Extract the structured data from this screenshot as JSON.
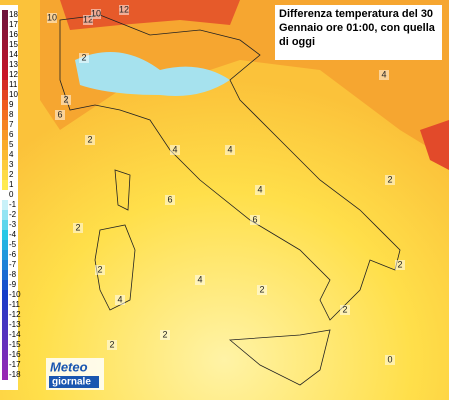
{
  "title": "Differenza temperatura del 30 Gennaio ore 01:00, con quella di oggi",
  "legend": {
    "values": [
      18,
      17,
      16,
      15,
      14,
      13,
      12,
      11,
      10,
      9,
      8,
      7,
      6,
      5,
      4,
      3,
      2,
      1,
      0,
      -1,
      -2,
      -3,
      -4,
      -5,
      -6,
      -7,
      -8,
      -9,
      -10,
      -11,
      -12,
      -13,
      -14,
      -15,
      -16,
      -17,
      -18
    ]
  },
  "logo": {
    "top": "Meteo",
    "bottom": "giornale"
  },
  "contour_labels": [
    10,
    12,
    10,
    12,
    2,
    2,
    6,
    2,
    4,
    6,
    4,
    4,
    6,
    2,
    2,
    4,
    2,
    2,
    4,
    2,
    2,
    0,
    2,
    4,
    2
  ]
}
